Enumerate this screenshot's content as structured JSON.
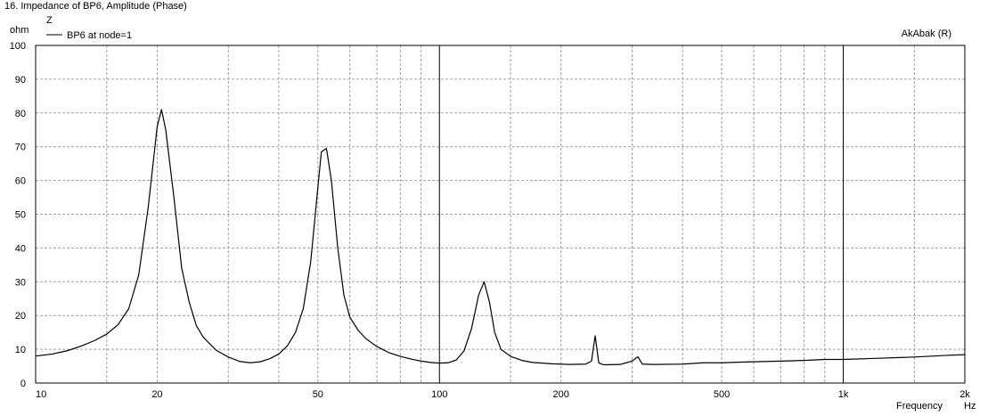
{
  "chart_data": {
    "type": "line",
    "title": "16. Impedance of BP6, Amplitude (Phase)",
    "quantity_label": "Z",
    "ylabel": "ohm",
    "xlabel": "Frequency",
    "xunit": "Hz",
    "brand": "AkAbak (R)",
    "xscale": "log",
    "xlim": [
      10,
      2000
    ],
    "ylim": [
      0,
      100
    ],
    "grid": true,
    "legend_placement": "top-left",
    "x_ticks": [
      {
        "value": 10,
        "label": "10"
      },
      {
        "value": 20,
        "label": "20"
      },
      {
        "value": 50,
        "label": "50"
      },
      {
        "value": 100,
        "label": "100"
      },
      {
        "value": 200,
        "label": "200"
      },
      {
        "value": 500,
        "label": "500"
      },
      {
        "value": 1000,
        "label": "1k"
      },
      {
        "value": 2000,
        "label": "2k"
      }
    ],
    "y_ticks": [
      0,
      10,
      20,
      30,
      40,
      50,
      60,
      70,
      80,
      90,
      100
    ],
    "series": [
      {
        "name": "BP6 at node=1",
        "color": "#000000",
        "points": [
          [
            10,
            8
          ],
          [
            11,
            8.6
          ],
          [
            12,
            9.6
          ],
          [
            13,
            11
          ],
          [
            14,
            12.6
          ],
          [
            15,
            14.5
          ],
          [
            16,
            17.3
          ],
          [
            17,
            22
          ],
          [
            18,
            32
          ],
          [
            19,
            52
          ],
          [
            20,
            76
          ],
          [
            20.5,
            81
          ],
          [
            21,
            75
          ],
          [
            22,
            55
          ],
          [
            23,
            34
          ],
          [
            24,
            24
          ],
          [
            25,
            17
          ],
          [
            26,
            13.6
          ],
          [
            28,
            9.7
          ],
          [
            30,
            7.7
          ],
          [
            32,
            6.4
          ],
          [
            34,
            6.0
          ],
          [
            36,
            6.3
          ],
          [
            38,
            7.2
          ],
          [
            40,
            8.6
          ],
          [
            42,
            11
          ],
          [
            44,
            15
          ],
          [
            46,
            22
          ],
          [
            48,
            36
          ],
          [
            50,
            58
          ],
          [
            51,
            68.5
          ],
          [
            52.5,
            69.5
          ],
          [
            54,
            60
          ],
          [
            56,
            40
          ],
          [
            58,
            26
          ],
          [
            60,
            19.5
          ],
          [
            63,
            15.5
          ],
          [
            66,
            13
          ],
          [
            70,
            10.8
          ],
          [
            75,
            9.0
          ],
          [
            80,
            7.9
          ],
          [
            85,
            7.1
          ],
          [
            90,
            6.5
          ],
          [
            95,
            6.1
          ],
          [
            100,
            5.9
          ],
          [
            105,
            6.0
          ],
          [
            110,
            6.8
          ],
          [
            115,
            9.5
          ],
          [
            120,
            16
          ],
          [
            125,
            26
          ],
          [
            129,
            30
          ],
          [
            133,
            24
          ],
          [
            137,
            15
          ],
          [
            142,
            10
          ],
          [
            150,
            7.9
          ],
          [
            160,
            6.7
          ],
          [
            170,
            6.1
          ],
          [
            190,
            5.7
          ],
          [
            210,
            5.5
          ],
          [
            230,
            5.6
          ],
          [
            238,
            6.5
          ],
          [
            243,
            14
          ],
          [
            248,
            6
          ],
          [
            255,
            5.4
          ],
          [
            280,
            5.5
          ],
          [
            300,
            6.5
          ],
          [
            310,
            7.8
          ],
          [
            318,
            5.6
          ],
          [
            340,
            5.5
          ],
          [
            400,
            5.6
          ],
          [
            450,
            6.0
          ],
          [
            500,
            6.0
          ],
          [
            560,
            6.2
          ],
          [
            600,
            6.3
          ],
          [
            700,
            6.5
          ],
          [
            800,
            6.7
          ],
          [
            900,
            7.0
          ],
          [
            1000,
            7.0
          ],
          [
            1200,
            7.3
          ],
          [
            1500,
            7.7
          ],
          [
            1800,
            8.2
          ],
          [
            2000,
            8.4
          ]
        ]
      }
    ]
  }
}
